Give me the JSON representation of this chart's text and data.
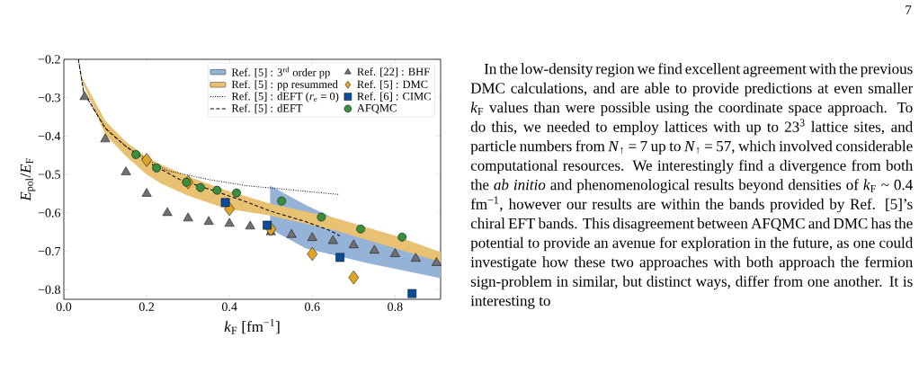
{
  "chart_data": {
    "type": "scatter",
    "xlabel": "*k*$_{F}$ [fm$^{−1}$]",
    "ylabel": "*E*$_{pol}$/*E*$_{F}$",
    "xlim": [
      0,
      0.91
    ],
    "ylim": [
      -0.825,
      -0.2
    ],
    "xticks": [
      {
        "value": 0,
        "label": "0.0"
      },
      {
        "value": 0.2,
        "label": "0.2"
      },
      {
        "value": 0.4,
        "label": "0.4"
      },
      {
        "value": 0.6,
        "label": "0.6"
      },
      {
        "value": 0.8,
        "label": "0.8"
      }
    ],
    "yticks": [
      {
        "value": -0.8,
        "label": "−0.8"
      },
      {
        "value": -0.7,
        "label": "−0.7"
      },
      {
        "value": -0.6,
        "label": "−0.6"
      },
      {
        "value": -0.5,
        "label": "−0.5"
      },
      {
        "value": -0.4,
        "label": "−0.4"
      },
      {
        "value": -0.3,
        "label": "−0.3"
      },
      {
        "value": -0.2,
        "label": "−0.2"
      }
    ],
    "legend": "top right",
    "grid": false,
    "series": [
      {
        "name": "Ref. [5] : 3$^{rd}$ order pp",
        "type": "area",
        "color": "#95b3d7",
        "x": [
          0.498,
          0.585,
          0.693,
          0.73,
          0.91
        ],
        "lower": [
          -0.642,
          -0.693,
          -0.72,
          -0.73,
          -0.77
        ],
        "upper": [
          -0.529,
          -0.58,
          -0.634,
          -0.648,
          -0.708
        ],
        "values": [
          null,
          null,
          null,
          null,
          null
        ]
      },
      {
        "name": "Ref. [5] : pp resummed",
        "type": "area",
        "color": "#e8c272",
        "x": [
          0.035,
          0.045,
          0.1,
          0.15,
          0.2,
          0.237,
          0.3,
          0.389,
          0.498,
          0.657,
          0.802,
          0.91
        ],
        "lower": [
          -0.2,
          -0.26,
          -0.396,
          -0.452,
          -0.5,
          -0.525,
          -0.555,
          -0.588,
          -0.607,
          -0.646,
          -0.693,
          -0.728
        ],
        "values": [
          null,
          null,
          null,
          null,
          null,
          null,
          null,
          null,
          null,
          null,
          null,
          null
        ],
        "upper": [
          -0.2,
          -0.25,
          -0.36,
          -0.415,
          -0.455,
          -0.475,
          -0.505,
          -0.54,
          -0.576,
          -0.614,
          -0.66,
          -0.702
        ]
      },
      {
        "name": "Ref. [5] : dEFT (*r*$_{e}$ = 0)",
        "type": "line",
        "line_style": "dotted",
        "marker": "none",
        "color": "#000000",
        "x": [
          0.035,
          0.048,
          0.1,
          0.15,
          0.2,
          0.25,
          0.35,
          0.44,
          0.51,
          0.585,
          0.665
        ],
        "values": [
          -0.2,
          -0.286,
          -0.378,
          -0.427,
          -0.46,
          -0.49,
          -0.513,
          -0.529,
          -0.536,
          -0.544,
          -0.552
        ]
      },
      {
        "name": "Ref. [5] : dEFT",
        "type": "line",
        "line_style": "dashed",
        "marker": "none",
        "color": "#000000",
        "x": [
          0.035,
          0.048,
          0.1,
          0.15,
          0.2,
          0.28,
          0.367,
          0.44,
          0.498,
          0.585,
          0.643,
          0.667
        ],
        "values": [
          -0.2,
          -0.286,
          -0.38,
          -0.427,
          -0.466,
          -0.513,
          -0.544,
          -0.571,
          -0.595,
          -0.623,
          -0.646,
          -0.66
        ]
      },
      {
        "name": "Ref. [22] : BHF",
        "marker": "triangle",
        "color": "#707070",
        "x": [
          0.05,
          0.1,
          0.15,
          0.2,
          0.25,
          0.3,
          0.35,
          0.4,
          0.45,
          0.5,
          0.55,
          0.6,
          0.65,
          0.7,
          0.75,
          0.8,
          0.85,
          0.9
        ],
        "values": [
          -0.298,
          -0.408,
          -0.494,
          -0.55,
          -0.6,
          -0.614,
          -0.623,
          -0.628,
          -0.635,
          -0.65,
          -0.657,
          -0.665,
          -0.673,
          -0.684,
          -0.698,
          -0.707,
          -0.719,
          -0.73
        ]
      },
      {
        "name": "Ref. [5] : DMC",
        "marker": "diamond",
        "color": "#e0a526",
        "x": [
          0.2,
          0.3,
          0.4,
          0.5,
          0.6,
          0.7
        ],
        "values": [
          -0.462,
          -0.52,
          -0.59,
          -0.642,
          -0.707,
          -0.768
        ]
      },
      {
        "name": "Ref. [6] : CIMC",
        "marker": "square",
        "color": "#0b4d9a",
        "x": [
          0.39,
          0.491,
          0.667,
          0.841
        ],
        "values": [
          -0.573,
          -0.632,
          -0.716,
          -0.81
        ]
      },
      {
        "name": "AFQMC",
        "marker": "circle",
        "color": "#3a8f3f",
        "x": [
          0.174,
          0.224,
          0.296,
          0.33,
          0.37,
          0.417,
          0.526,
          0.622,
          0.717,
          0.817
        ],
        "values": [
          -0.448,
          -0.483,
          -0.52,
          -0.534,
          -0.541,
          -0.548,
          -0.569,
          -0.611,
          -0.642,
          -0.663
        ]
      }
    ],
    "annotations": [
      "7",
      "In the low-density region we find excellent agreement with the previous DMC calculations, and are able to provide predictions at even smaller *k*$_{F}$ values than were possible using the coordinate space approach. To do this, we needed to employ lattices with up to 23$^{3}$ lattice sites, and particle numbers from *N*$_{↑}$ = 7 up to *N*$_{↑}$ = 57, which involved considerable computational resources. We interestingly find a divergence from both the *ab initio* and phenomenological results beyond densities of *k*$_{F}$ ~ 0.4 fm$^{−1}$, however our results are within the bands provided by Ref. [5]’s chiral EFT bands. This disagreement between AFQMC and DMC has the potential to provide an avenue for exploration in the future, as one could investigate how these two approaches with both approach the fermion sign-problem in similar, but distinct ways, differ from one another. It is interesting to"
    ]
  }
}
